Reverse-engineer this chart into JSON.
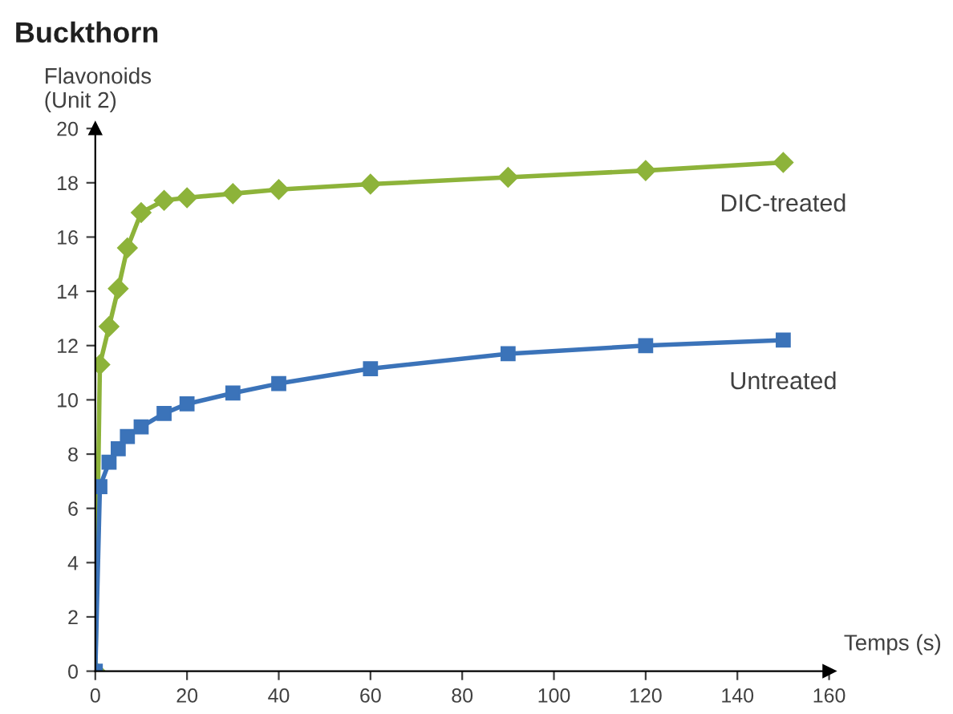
{
  "chart_data": {
    "type": "line",
    "title": "Buckthorn",
    "ylabel": "Flavonoids\n(Unit 2)",
    "xlabel": "Temps (s)",
    "x": [
      0,
      1,
      3,
      5,
      7,
      10,
      15,
      20,
      30,
      40,
      60,
      90,
      120,
      150
    ],
    "series": [
      {
        "name": "DIC-treated",
        "color": "#8db33a",
        "marker": "diamond",
        "values": [
          0,
          11.3,
          12.7,
          14.1,
          15.6,
          16.9,
          17.35,
          17.45,
          17.6,
          17.75,
          17.95,
          18.2,
          18.45,
          18.75
        ]
      },
      {
        "name": "Untreated",
        "color": "#3b73b9",
        "marker": "square",
        "values": [
          0,
          6.8,
          7.7,
          8.2,
          8.65,
          9.0,
          9.5,
          9.85,
          10.25,
          10.6,
          11.15,
          11.7,
          12.0,
          12.2
        ]
      }
    ],
    "xlim": [
      0,
      160
    ],
    "xticks": [
      0,
      20,
      40,
      60,
      80,
      100,
      120,
      140,
      160
    ],
    "ylim": [
      0,
      20
    ],
    "yticks": [
      0,
      2,
      4,
      6,
      8,
      10,
      12,
      14,
      16,
      18,
      20
    ],
    "grid": false,
    "legend": false,
    "line_style": "solid"
  }
}
